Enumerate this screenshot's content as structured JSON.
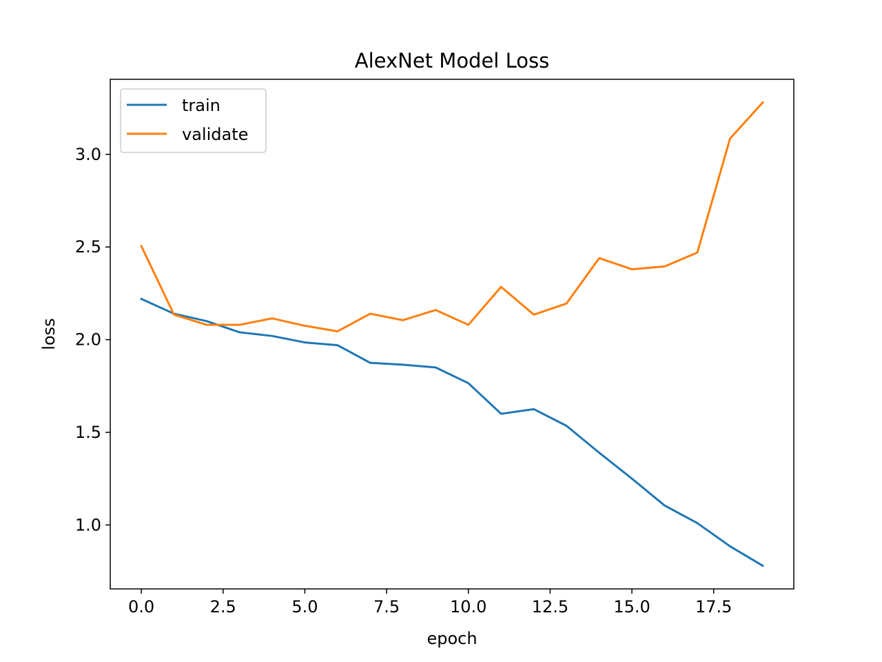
{
  "chart_data": {
    "type": "line",
    "title": "AlexNet Model Loss",
    "xlabel": "epoch",
    "ylabel": "loss",
    "xlim": [
      -0.95,
      19.95
    ],
    "ylim": [
      0.655,
      3.405
    ],
    "xticks": [
      0.0,
      2.5,
      5.0,
      7.5,
      10.0,
      12.5,
      15.0,
      17.5
    ],
    "xtick_labels": [
      "0.0",
      "2.5",
      "5.0",
      "7.5",
      "10.0",
      "12.5",
      "15.0",
      "17.5"
    ],
    "yticks": [
      1.0,
      1.5,
      2.0,
      2.5,
      3.0
    ],
    "ytick_labels": [
      "1.0",
      "1.5",
      "2.0",
      "2.5",
      "3.0"
    ],
    "grid": false,
    "legend_position": "top-left",
    "x": [
      0,
      1,
      2,
      3,
      4,
      5,
      6,
      7,
      8,
      9,
      10,
      11,
      12,
      13,
      14,
      15,
      16,
      17,
      18,
      19
    ],
    "series": [
      {
        "name": "train",
        "color": "#1f77b4",
        "values": [
          2.22,
          2.14,
          2.1,
          2.04,
          2.02,
          1.985,
          1.97,
          1.875,
          1.865,
          1.85,
          1.765,
          1.6,
          1.625,
          1.535,
          1.39,
          1.25,
          1.105,
          1.01,
          0.885,
          0.78
        ]
      },
      {
        "name": "validate",
        "color": "#ff7f0e",
        "values": [
          2.505,
          2.135,
          2.08,
          2.08,
          2.115,
          2.075,
          2.045,
          2.14,
          2.105,
          2.16,
          2.08,
          2.285,
          2.135,
          2.195,
          2.44,
          2.38,
          2.395,
          2.47,
          3.085,
          3.28
        ]
      }
    ]
  }
}
